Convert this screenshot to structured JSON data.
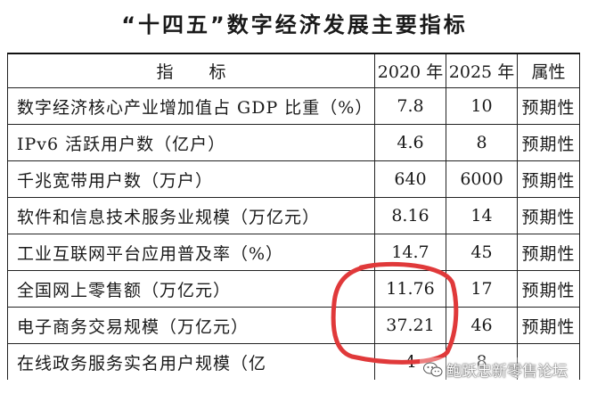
{
  "title": "“十四五”数字经济发展主要指标",
  "table": {
    "headers": [
      "指标",
      "2020 年",
      "2025 年",
      "属性"
    ],
    "rows": [
      {
        "indicator": "数字经济核心产业增加值占 GDP 比重（%）",
        "y2020": "7.8",
        "y2025": "10",
        "attr": "预期性"
      },
      {
        "indicator": "IPv6 活跃用户数（亿户）",
        "y2020": "4.6",
        "y2025": "8",
        "attr": "预期性"
      },
      {
        "indicator": "千兆宽带用户数（万户）",
        "y2020": "640",
        "y2025": "6000",
        "attr": "预期性"
      },
      {
        "indicator": "软件和信息技术服务业规模（万亿元）",
        "y2020": "8.16",
        "y2025": "14",
        "attr": "预期性"
      },
      {
        "indicator": "工业互联网平台应用普及率（%）",
        "y2020": "14.7",
        "y2025": "45",
        "attr": "预期性"
      },
      {
        "indicator": "全国网上零售额（万亿元）",
        "y2020": "11.76",
        "y2025": "17",
        "attr": "预期性"
      },
      {
        "indicator": "电子商务交易规模（万亿元）",
        "y2020": "37.21",
        "y2025": "46",
        "attr": "预期性"
      },
      {
        "indicator": "在线政务服务实名用户规模（亿",
        "y2020": "4",
        "y2025": "8",
        "attr": ""
      }
    ]
  },
  "annotation": {
    "color": "#e0393a",
    "highlighted_rows": [
      5,
      6
    ]
  },
  "watermark": {
    "text": "鲍跃忠新零售论坛",
    "icon": "wechat-icon"
  }
}
